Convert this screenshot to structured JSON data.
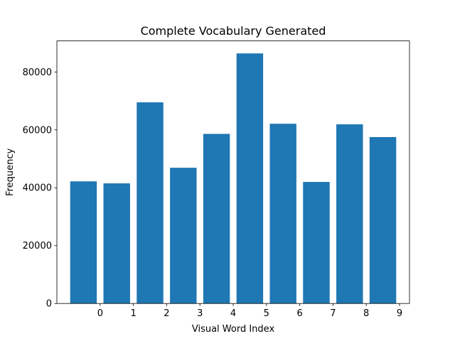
{
  "chart_data": {
    "type": "bar",
    "title": "Complete Vocabulary Generated",
    "xlabel": "Visual Word Index",
    "ylabel": "Frequency",
    "bar_color": "#1f77b4",
    "x": [
      0,
      1,
      2,
      3,
      4,
      5,
      6,
      7,
      8,
      9
    ],
    "values": [
      42200,
      41500,
      69500,
      46900,
      58600,
      86400,
      62100,
      42000,
      61900,
      57500
    ],
    "xticks": [
      "0",
      "1",
      "2",
      "3",
      "4",
      "5",
      "6",
      "7",
      "8",
      "9"
    ],
    "yticks": [
      0,
      20000,
      40000,
      60000,
      80000
    ],
    "ytick_labels": [
      "0",
      "20000",
      "40000",
      "60000",
      "80000"
    ],
    "ylim": [
      0,
      90720
    ],
    "grid": false,
    "legend": "none"
  }
}
